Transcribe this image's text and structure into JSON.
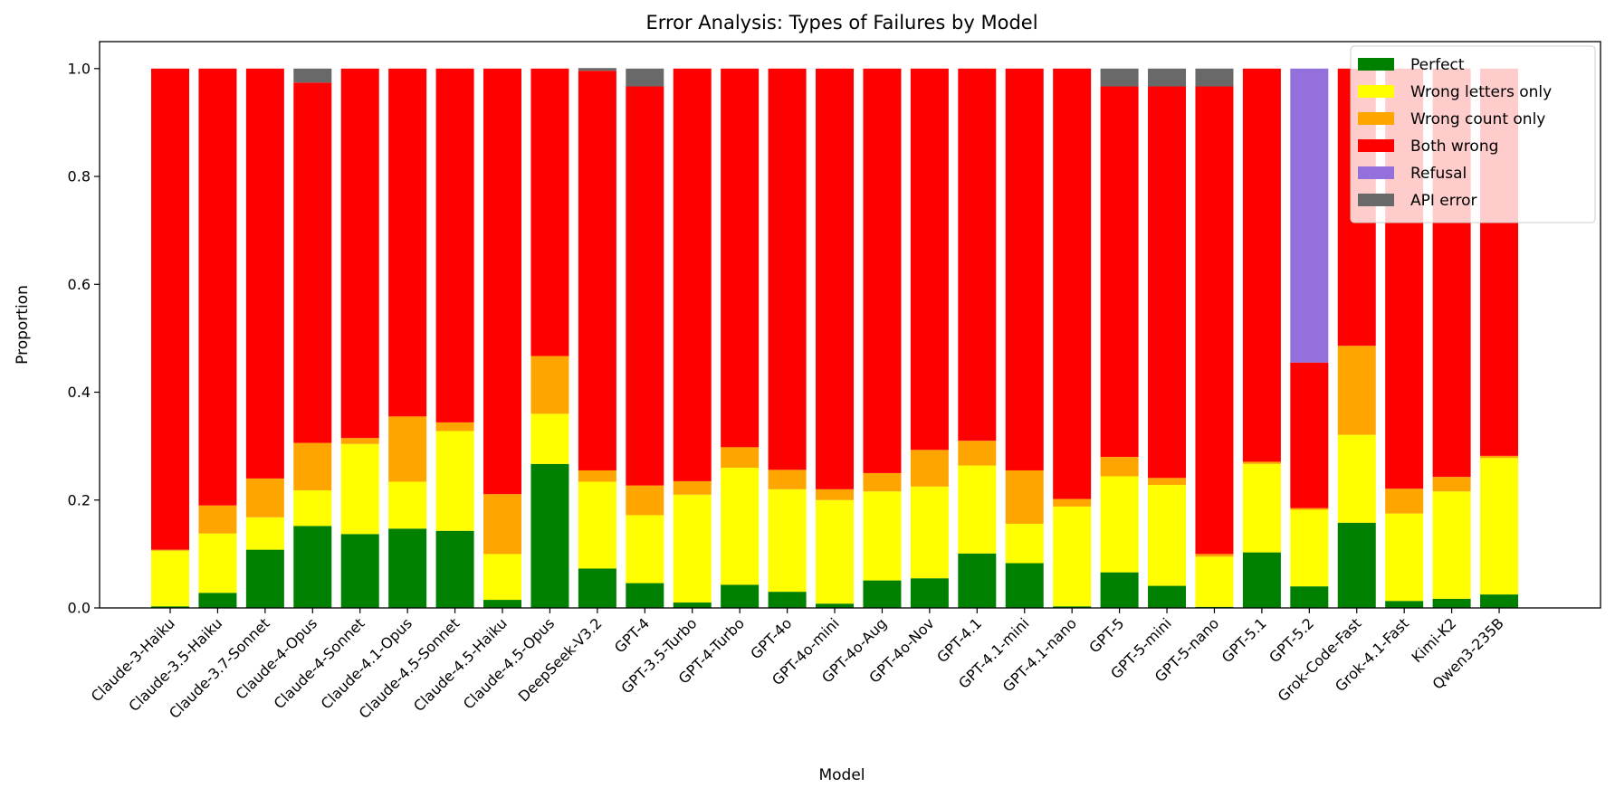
{
  "chart_data": {
    "type": "bar",
    "stacked": true,
    "title": "Error Analysis: Types of Failures by Model",
    "xlabel": "Model",
    "ylabel": "Proportion",
    "ylim": [
      0,
      1.05
    ],
    "yticks": [
      0.0,
      0.2,
      0.4,
      0.6,
      0.8,
      1.0
    ],
    "ytick_labels": [
      "0.0",
      "0.2",
      "0.4",
      "0.6",
      "0.8",
      "1.0"
    ],
    "legend_position": "top-right",
    "categories": [
      "Claude-3-Haiku",
      "Claude-3.5-Haiku",
      "Claude-3.7-Sonnet",
      "Claude-4-Opus",
      "Claude-4-Sonnet",
      "Claude-4.1-Opus",
      "Claude-4.5-Sonnet",
      "Claude-4.5-Haiku",
      "Claude-4.5-Opus",
      "DeepSeek-V3.2",
      "GPT-4",
      "GPT-3.5-Turbo",
      "GPT-4-Turbo",
      "GPT-4o",
      "GPT-4o-mini",
      "GPT-4o-Aug",
      "GPT-4o-Nov",
      "GPT-4.1",
      "GPT-4.1-mini",
      "GPT-4.1-nano",
      "GPT-5",
      "GPT-5-mini",
      "GPT-5-nano",
      "GPT-5.1",
      "GPT-5.2",
      "Grok-Code-Fast",
      "Grok-4.1-Fast",
      "Kimi-K2",
      "Qwen3-235B"
    ],
    "series": [
      {
        "name": "Perfect",
        "color": "#008000",
        "values": [
          0.003,
          0.028,
          0.108,
          0.152,
          0.137,
          0.147,
          0.143,
          0.015,
          0.267,
          0.073,
          0.046,
          0.01,
          0.043,
          0.03,
          0.008,
          0.051,
          0.055,
          0.101,
          0.083,
          0.003,
          0.066,
          0.041,
          0.002,
          0.103,
          0.04,
          0.158,
          0.013,
          0.017,
          0.025
        ]
      },
      {
        "name": "Wrong letters only",
        "color": "#ffff00",
        "values": [
          0.103,
          0.11,
          0.06,
          0.066,
          0.167,
          0.087,
          0.185,
          0.085,
          0.093,
          0.161,
          0.126,
          0.2,
          0.217,
          0.19,
          0.192,
          0.165,
          0.17,
          0.163,
          0.073,
          0.185,
          0.178,
          0.187,
          0.093,
          0.164,
          0.142,
          0.163,
          0.162,
          0.199,
          0.253
        ]
      },
      {
        "name": "Wrong count only",
        "color": "#ffa500",
        "values": [
          0.002,
          0.052,
          0.072,
          0.088,
          0.011,
          0.121,
          0.016,
          0.111,
          0.107,
          0.021,
          0.055,
          0.025,
          0.038,
          0.036,
          0.02,
          0.034,
          0.068,
          0.046,
          0.099,
          0.014,
          0.036,
          0.013,
          0.005,
          0.004,
          0.003,
          0.165,
          0.046,
          0.027,
          0.004
        ]
      },
      {
        "name": "Both wrong",
        "color": "#ff0000",
        "values": [
          0.892,
          0.81,
          0.76,
          0.668,
          0.685,
          0.645,
          0.656,
          0.789,
          0.533,
          0.741,
          0.74,
          0.765,
          0.702,
          0.744,
          0.78,
          0.75,
          0.707,
          0.69,
          0.745,
          0.798,
          0.687,
          0.726,
          0.867,
          0.729,
          0.27,
          0.514,
          0.779,
          0.757,
          0.718
        ]
      },
      {
        "name": "Refusal",
        "color": "#9370db",
        "values": [
          0,
          0,
          0,
          0,
          0,
          0,
          0,
          0,
          0,
          0,
          0,
          0,
          0,
          0,
          0,
          0,
          0,
          0,
          0,
          0,
          0,
          0,
          0,
          0,
          0.545,
          0,
          0,
          0,
          0
        ]
      },
      {
        "name": "API error",
        "color": "#696969",
        "values": [
          0,
          0,
          0,
          0.026,
          0,
          0,
          0,
          0,
          0,
          0.005,
          0.033,
          0,
          0,
          0,
          0,
          0,
          0,
          0,
          0,
          0,
          0.033,
          0.033,
          0.033,
          0,
          0,
          0,
          0,
          0,
          0
        ]
      }
    ]
  }
}
